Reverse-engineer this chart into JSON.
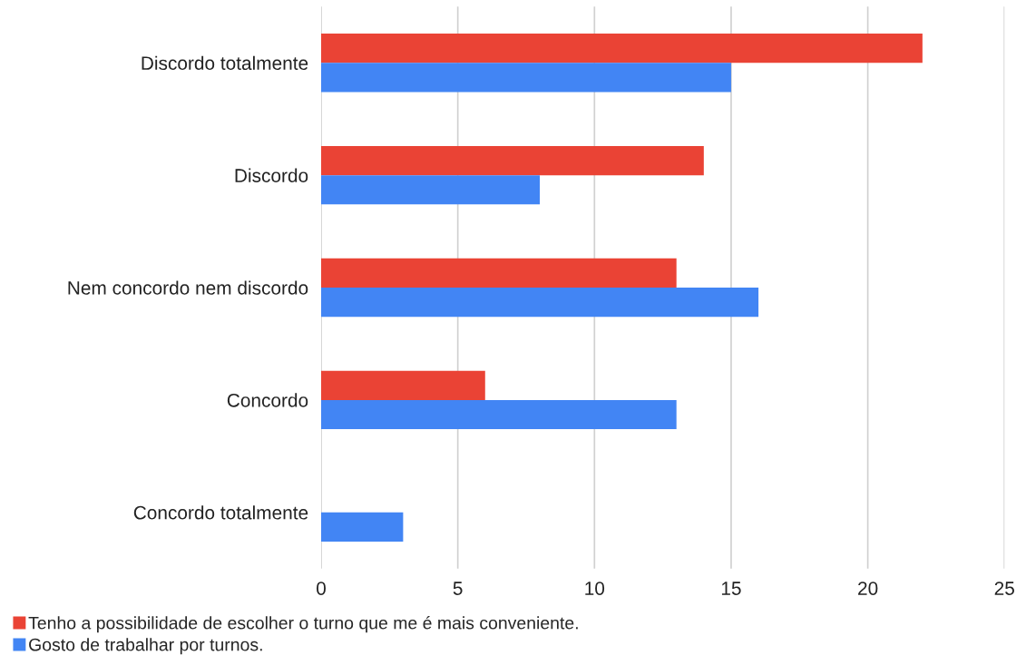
{
  "chart_data": {
    "type": "bar",
    "orientation": "horizontal",
    "categories": [
      "Discordo totalmente",
      "Discordo",
      "Nem concordo nem discordo",
      "Concordo",
      "Concordo totalmente"
    ],
    "series": [
      {
        "name": "Tenho a possibilidade de escolher o turno que me é mais conveniente.",
        "color": "#ea4335",
        "values": [
          22,
          14,
          13,
          6,
          null
        ]
      },
      {
        "name": "Gosto de trabalhar por turnos.",
        "color": "#4285f4",
        "values": [
          15,
          8,
          16,
          13,
          3
        ]
      }
    ],
    "xlim": [
      0,
      25
    ],
    "xticks": [
      0,
      5,
      10,
      15,
      20,
      25
    ],
    "grid": "x",
    "legend": "bottom left"
  }
}
